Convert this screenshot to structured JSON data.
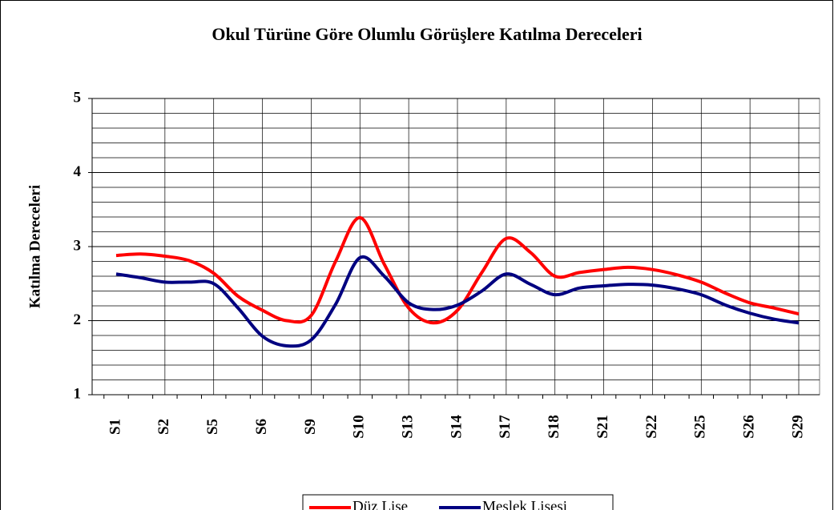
{
  "chart_data": {
    "type": "line",
    "title": "Okul Türüne Göre Olumlu Görüşlere Katılma Dereceleri",
    "y_label": "Katılma Dereceleri",
    "categories": [
      "S1",
      null,
      "S2",
      null,
      "S5",
      null,
      "S6",
      null,
      "S9",
      null,
      "S10",
      null,
      "S13",
      null,
      "S14",
      null,
      "S17",
      null,
      "S18",
      null,
      "S21",
      null,
      "S22",
      null,
      "S25",
      null,
      "S26",
      null,
      "S29"
    ],
    "series": [
      {
        "name": "Düz Lise",
        "color": "#ff0000",
        "values": [
          2.88,
          2.9,
          2.87,
          2.81,
          2.64,
          2.33,
          2.14,
          2.0,
          2.07,
          2.8,
          3.39,
          2.76,
          2.17,
          1.97,
          2.14,
          2.65,
          3.11,
          2.92,
          2.6,
          2.65,
          2.69,
          2.72,
          2.69,
          2.62,
          2.52,
          2.37,
          2.24,
          2.17,
          2.09
        ]
      },
      {
        "name": "Meslek Lisesi",
        "color": "#000080",
        "values": [
          2.63,
          2.58,
          2.52,
          2.52,
          2.5,
          2.17,
          1.79,
          1.66,
          1.74,
          2.22,
          2.85,
          2.6,
          2.24,
          2.15,
          2.21,
          2.4,
          2.63,
          2.49,
          2.35,
          2.44,
          2.47,
          2.49,
          2.48,
          2.43,
          2.35,
          2.21,
          2.1,
          2.02,
          1.97
        ]
      }
    ],
    "ylim": [
      1,
      5
    ],
    "yticks": [
      1,
      2,
      3,
      4,
      5
    ],
    "minor_grid": [
      1.2,
      1.4,
      1.6,
      1.8,
      2.2,
      2.4,
      2.6,
      2.8,
      3.2,
      3.4,
      3.6,
      3.8,
      4.2,
      4.4,
      4.6,
      4.8
    ],
    "grid": true,
    "legend": "bottom"
  }
}
